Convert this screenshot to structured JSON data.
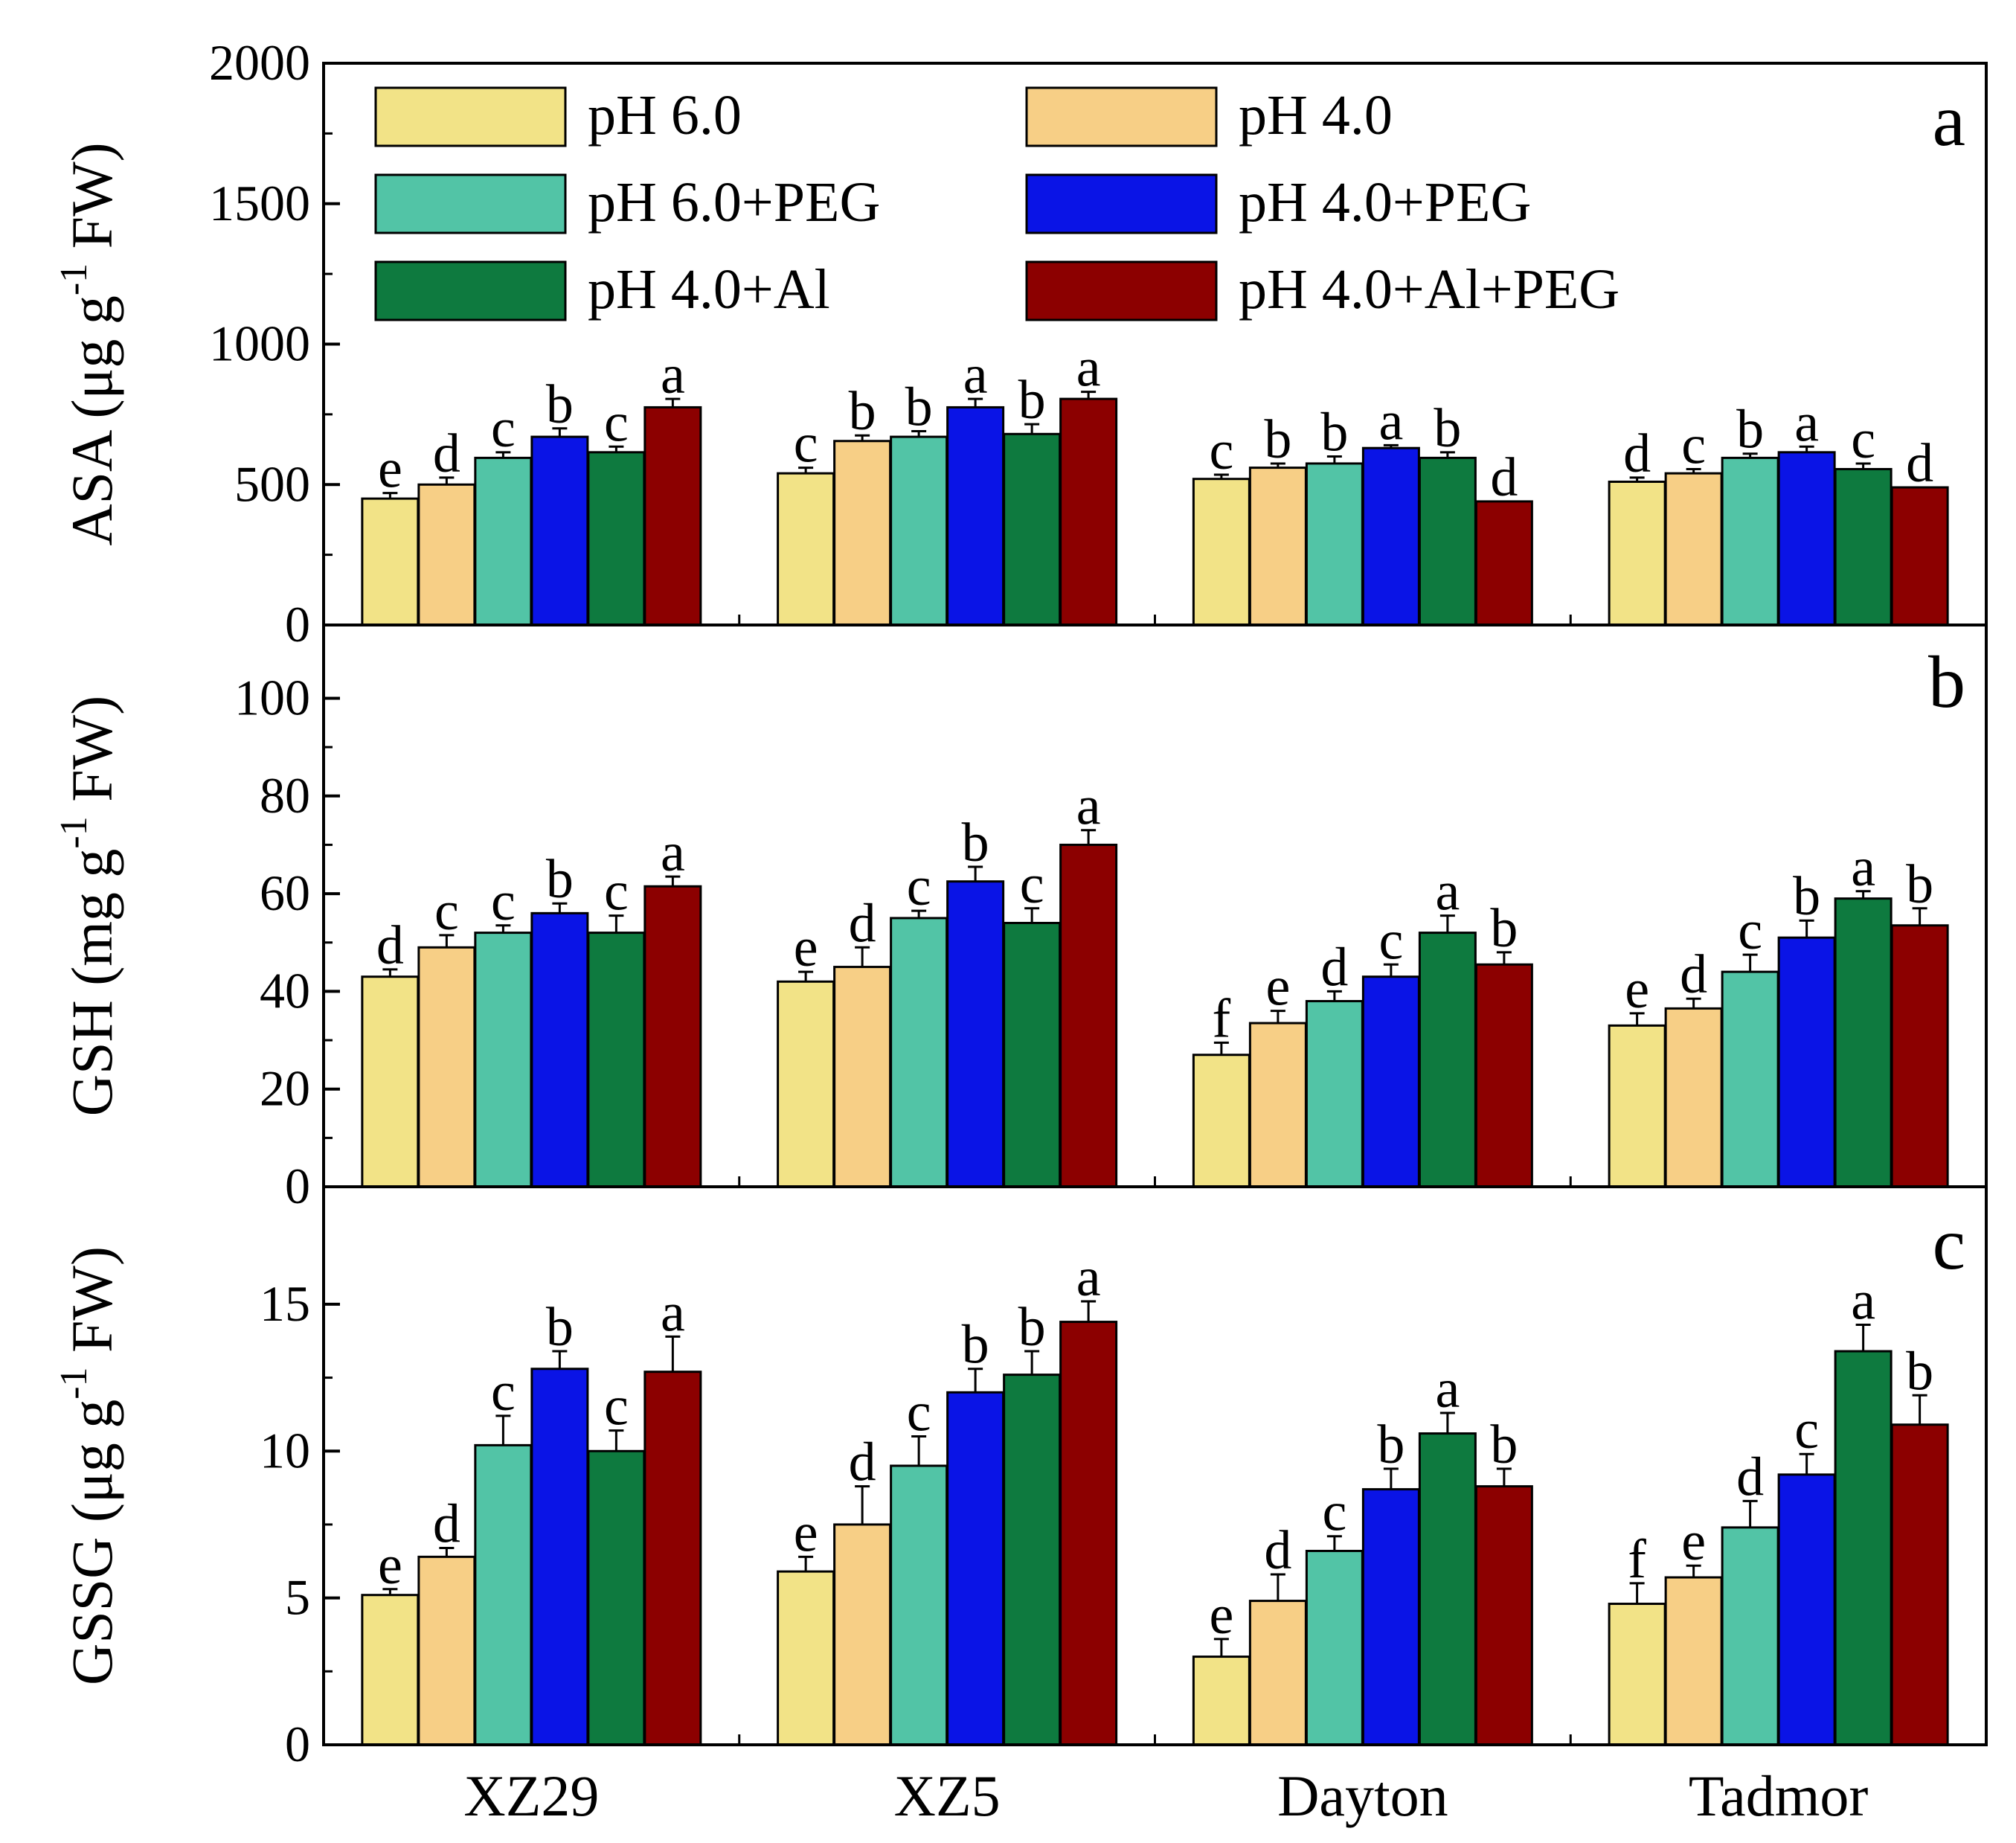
{
  "chart_data": {
    "type": "bar",
    "categories": [
      "XZ29",
      "XZ5",
      "Dayton",
      "Tadmor"
    ],
    "legend": {
      "placement": "top",
      "entries": [
        {
          "name": "pH 6.0",
          "color": "#f2e387"
        },
        {
          "name": "pH 4.0",
          "color": "#f7cf86"
        },
        {
          "name": "pH 6.0+PEG",
          "color": "#52c4a6"
        },
        {
          "name": "pH 4.0+PEG",
          "color": "#0a14e6"
        },
        {
          "name": "pH 4.0+Al",
          "color": "#0e7a3f"
        },
        {
          "name": "pH 4.0+Al+PEG",
          "color": "#8c0000"
        }
      ]
    },
    "panels": [
      {
        "letter": "a",
        "ylabel": {
          "main": "ASA (μg g",
          "sup": "-1",
          "tail": " FW)"
        },
        "ylim": [
          0,
          2000
        ],
        "yticks": [
          0,
          500,
          1000,
          1500,
          2000
        ],
        "series": [
          {
            "name": "pH 6.0",
            "values": [
              450,
              540,
              520,
              510
            ],
            "errors": [
              20,
              20,
              15,
              15
            ],
            "letters": [
              "e",
              "c",
              "c",
              "d"
            ]
          },
          {
            "name": "pH 4.0",
            "values": [
              500,
              655,
              560,
              540
            ],
            "errors": [
              25,
              20,
              15,
              15
            ],
            "letters": [
              "d",
              "b",
              "b",
              "c"
            ]
          },
          {
            "name": "pH 6.0+PEG",
            "values": [
              595,
              670,
              575,
              595
            ],
            "errors": [
              20,
              20,
              25,
              15
            ],
            "letters": [
              "c",
              "b",
              "b",
              "b"
            ]
          },
          {
            "name": "pH 4.0+PEG",
            "values": [
              670,
              775,
              630,
              615
            ],
            "errors": [
              30,
              30,
              10,
              20
            ],
            "letters": [
              "b",
              "a",
              "a",
              "a"
            ]
          },
          {
            "name": "pH 4.0+Al",
            "values": [
              615,
              680,
              595,
              555
            ],
            "errors": [
              20,
              35,
              20,
              20
            ],
            "letters": [
              "c",
              "b",
              "b",
              "c"
            ]
          },
          {
            "name": "pH 4.0+Al+PEG",
            "values": [
              775,
              805,
              440,
              490
            ],
            "errors": [
              30,
              25,
              0,
              0
            ],
            "letters": [
              "a",
              "a",
              "d",
              "d"
            ]
          }
        ]
      },
      {
        "letter": "b",
        "ylabel": {
          "main": "GSH (mg g",
          "sup": "-1",
          "tail": " FW)"
        },
        "ylim": [
          0,
          115
        ],
        "yticks": [
          0,
          20,
          40,
          60,
          80,
          100
        ],
        "series": [
          {
            "name": "pH 6.0",
            "values": [
              43,
              42,
              27,
              33
            ],
            "errors": [
              1.5,
              2,
              2.5,
              2.5
            ],
            "letters": [
              "d",
              "e",
              "f",
              "e"
            ]
          },
          {
            "name": "pH 4.0",
            "values": [
              49,
              45,
              33.5,
              36.5
            ],
            "errors": [
              2.5,
              4,
              2.5,
              2
            ],
            "letters": [
              "c",
              "d",
              "e",
              "d"
            ]
          },
          {
            "name": "pH 6.0+PEG",
            "values": [
              52,
              55,
              38,
              44
            ],
            "errors": [
              1.5,
              1.5,
              2,
              3.5
            ],
            "letters": [
              "c",
              "c",
              "d",
              "c"
            ]
          },
          {
            "name": "pH 4.0+PEG",
            "values": [
              56,
              62.5,
              43,
              51
            ],
            "errors": [
              2,
              3,
              2.5,
              3.5
            ],
            "letters": [
              "b",
              "b",
              "c",
              "b"
            ]
          },
          {
            "name": "pH 4.0+Al",
            "values": [
              52,
              54,
              52,
              59
            ],
            "errors": [
              3.5,
              3,
              3.5,
              1.5
            ],
            "letters": [
              "c",
              "c",
              "a",
              "a"
            ]
          },
          {
            "name": "pH 4.0+Al+PEG",
            "values": [
              61.5,
              70,
              45.5,
              53.5
            ],
            "errors": [
              2,
              3,
              2.5,
              3.5
            ],
            "letters": [
              "a",
              "a",
              "b",
              "b"
            ]
          }
        ]
      },
      {
        "letter": "c",
        "ylabel": {
          "main": "GSSG (μg g",
          "sup": "-1",
          "tail": " FW)"
        },
        "ylim": [
          0,
          19
        ],
        "yticks": [
          0,
          5,
          10,
          15
        ],
        "series": [
          {
            "name": "pH 6.0",
            "values": [
              5.1,
              5.9,
              3.0,
              4.8
            ],
            "errors": [
              0.2,
              0.5,
              0.6,
              0.7
            ],
            "letters": [
              "e",
              "e",
              "e",
              "f"
            ]
          },
          {
            "name": "pH 4.0",
            "values": [
              6.4,
              7.5,
              4.9,
              5.7
            ],
            "errors": [
              0.3,
              1.3,
              0.9,
              0.4
            ],
            "letters": [
              "d",
              "d",
              "d",
              "e"
            ]
          },
          {
            "name": "pH 6.0+PEG",
            "values": [
              10.2,
              9.5,
              6.6,
              7.4
            ],
            "errors": [
              1.0,
              1.0,
              0.5,
              0.9
            ],
            "letters": [
              "c",
              "c",
              "c",
              "d"
            ]
          },
          {
            "name": "pH 4.0+PEG",
            "values": [
              12.8,
              12.0,
              8.7,
              9.2
            ],
            "errors": [
              0.6,
              0.8,
              0.7,
              0.7
            ],
            "letters": [
              "b",
              "b",
              "b",
              "c"
            ]
          },
          {
            "name": "pH 4.0+Al",
            "values": [
              10.0,
              12.6,
              10.6,
              13.4
            ],
            "errors": [
              0.7,
              0.8,
              0.7,
              0.9
            ],
            "letters": [
              "c",
              "b",
              "a",
              "a"
            ]
          },
          {
            "name": "pH 4.0+Al+PEG",
            "values": [
              12.7,
              14.4,
              8.8,
              10.9
            ],
            "errors": [
              1.2,
              0.7,
              0.6,
              1.0
            ],
            "letters": [
              "a",
              "a",
              "b",
              "b"
            ]
          }
        ]
      }
    ]
  }
}
